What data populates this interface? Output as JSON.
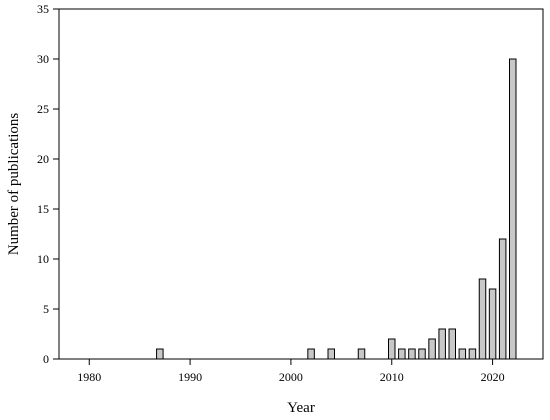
{
  "chart_data": {
    "type": "bar",
    "xlabel": "Year",
    "ylabel": "Number of publications",
    "xlim": [
      1977,
      2025
    ],
    "ylim": [
      0,
      35
    ],
    "x_ticks": [
      1980,
      1990,
      2000,
      2010,
      2020
    ],
    "y_ticks": [
      0,
      5,
      10,
      15,
      20,
      25,
      30,
      35
    ],
    "grid": false,
    "bar_color": "#c8c8c8",
    "x": [
      1987,
      2002,
      2004,
      2007,
      2010,
      2011,
      2012,
      2013,
      2014,
      2015,
      2016,
      2017,
      2018,
      2019,
      2020,
      2021,
      2022
    ],
    "values": [
      1,
      1,
      1,
      1,
      2,
      1,
      1,
      1,
      2,
      3,
      3,
      1,
      1,
      8,
      7,
      12,
      30
    ]
  }
}
